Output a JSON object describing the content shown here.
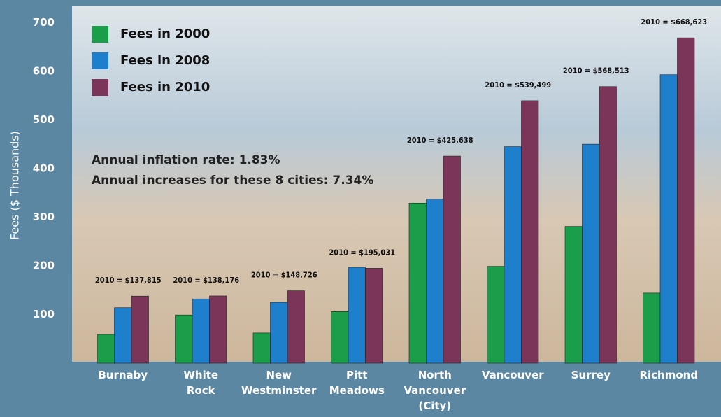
{
  "chart_data": {
    "type": "bar",
    "y_label": "Fees ($ Thousands)",
    "categories": [
      "Burnaby",
      "White Rock",
      "New Westminster",
      "Pitt Meadows",
      "North Vancouver (City)",
      "Vancouver",
      "Surrey",
      "Richmond"
    ],
    "series": [
      {
        "name": "Fees in 2000",
        "color": "#1a9e4a",
        "values": [
          59,
          99,
          62,
          106,
          329,
          199,
          281,
          144
        ]
      },
      {
        "name": "Fees in 2008",
        "color": "#1e7fcc",
        "values": [
          114,
          132,
          125,
          197,
          337,
          445,
          450,
          593
        ]
      },
      {
        "name": "Fees in 2010",
        "color": "#7b3558",
        "values": [
          137.815,
          138.176,
          148.726,
          195.031,
          425.638,
          539.499,
          568.513,
          668.623
        ],
        "value_labels": [
          "2010 = $137,815",
          "2010 = $138,176",
          "2010 = $148,726",
          "2010 = $195,031",
          "2010 = $425,638",
          "2010 = $539,499",
          "2010 = $568,513",
          "2010 = $668,623"
        ]
      }
    ],
    "annotations": [
      "Annual inflation rate: 1.83%",
      "Annual increases for these 8 cities: 7.34%"
    ],
    "ylim": [
      0,
      735
    ],
    "yticks": [
      100,
      200,
      300,
      400,
      500,
      600,
      700
    ],
    "grid": false,
    "legend": "top-left"
  }
}
